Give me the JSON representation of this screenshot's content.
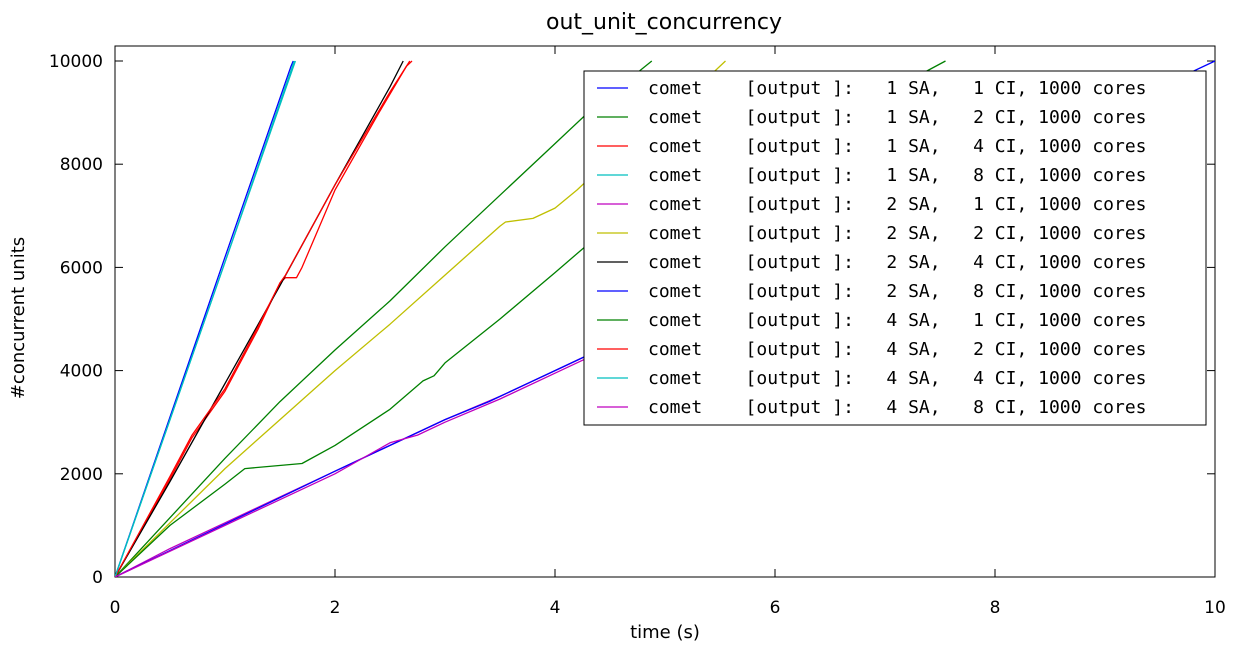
{
  "chart_data": {
    "type": "line",
    "title": "out_unit_concurrency",
    "xlabel": "time (s)",
    "ylabel": "#concurrent units",
    "xlim": [
      0,
      10
    ],
    "ylim": [
      0,
      10000
    ],
    "xticks": [
      "0",
      "2",
      "4",
      "6",
      "8",
      "10"
    ],
    "yticks": [
      "0",
      "2000",
      "4000",
      "6000",
      "8000",
      "10000"
    ],
    "grid": false,
    "legend_position": "upper right",
    "series": [
      {
        "name": "comet    [output ]:   1 SA,   1 CI, 1000 cores",
        "color": "#0000ff",
        "x": [
          0,
          0.5,
          1.0,
          1.6,
          1.62
        ],
        "y": [
          0,
          3100,
          6200,
          9900,
          10000
        ]
      },
      {
        "name": "comet    [output ]:   1 SA,   2 CI, 1000 cores",
        "color": "#008000",
        "x": [
          0,
          0.5,
          1.0,
          1.5,
          2.0,
          2.5,
          3.0,
          3.5,
          4.0,
          4.3,
          4.88
        ],
        "y": [
          0,
          1150,
          2300,
          3400,
          4400,
          5350,
          6400,
          7400,
          8400,
          9000,
          10000
        ]
      },
      {
        "name": "comet    [output ]:   1 SA,   4 CI, 1000 cores",
        "color": "#ff0000",
        "x": [
          0,
          0.5,
          0.7,
          1.0,
          1.3,
          1.5,
          1.55,
          1.6,
          1.65,
          1.7,
          2.0,
          2.4,
          2.65,
          2.7
        ],
        "y": [
          0,
          1900,
          2700,
          3600,
          4800,
          5700,
          5800,
          5800,
          5800,
          6000,
          7500,
          9000,
          9900,
          10000
        ]
      },
      {
        "name": "comet    [output ]:   1 SA,   8 CI, 1000 cores",
        "color": "#00bfbf",
        "x": [
          0,
          0.5,
          1.0,
          1.5,
          1.64
        ],
        "y": [
          0,
          3050,
          6100,
          9150,
          10000
        ]
      },
      {
        "name": "comet    [output ]:   2 SA,   1 CI, 1000 cores",
        "color": "#bf00bf",
        "x": [
          0,
          0.5,
          1.0,
          1.5,
          2.0,
          2.5,
          3.0,
          3.5,
          4.0,
          4.3
        ],
        "y": [
          0,
          550,
          1050,
          1550,
          2050,
          2550,
          3050,
          3500,
          4000,
          4300
        ]
      },
      {
        "name": "comet    [output ]:   2 SA,   2 CI, 1000 cores",
        "color": "#bfbf00",
        "x": [
          0,
          0.5,
          1.0,
          1.5,
          2.0,
          2.5,
          3.0,
          3.5,
          3.55,
          3.8,
          4.0,
          4.2,
          4.3,
          4.7,
          5.0,
          5.3,
          5.55
        ],
        "y": [
          0,
          1050,
          2100,
          3050,
          4000,
          4900,
          5850,
          6800,
          6880,
          6950,
          7150,
          7500,
          7700,
          8300,
          8950,
          9500,
          10000
        ]
      },
      {
        "name": "comet    [output ]:   2 SA,   4 CI, 1000 cores",
        "color": "#000000",
        "x": [
          0,
          0.5,
          1.0,
          1.5,
          2.0,
          2.5,
          2.62
        ],
        "y": [
          0,
          1850,
          3750,
          5650,
          7600,
          9500,
          10000
        ]
      },
      {
        "name": "comet    [output ]:   2 SA,   8 CI, 1000 cores",
        "color": "#0000ff",
        "x": [
          0,
          2.0,
          2.5,
          2.7,
          3.0,
          3.4,
          3.5,
          4.0,
          4.3,
          6.0,
          8.0,
          9.0,
          9.5,
          10.0
        ],
        "y": [
          0,
          2050,
          2550,
          2750,
          3050,
          3400,
          3500,
          4000,
          4300,
          5950,
          7950,
          8950,
          9500,
          10000
        ]
      },
      {
        "name": "comet    [output ]:   4 SA,   1 CI, 1000 cores",
        "color": "#008000",
        "x": [
          0,
          0.5,
          1.0,
          1.18,
          1.7,
          2.0,
          2.5,
          2.8,
          2.9,
          3.0,
          3.5,
          4.0,
          4.3,
          5.5,
          6.5,
          7.55
        ],
        "y": [
          0,
          1000,
          1800,
          2100,
          2200,
          2550,
          3250,
          3800,
          3900,
          4150,
          5000,
          5900,
          6450,
          7700,
          8800,
          10000
        ]
      },
      {
        "name": "comet    [output ]:   4 SA,   2 CI, 1000 cores",
        "color": "#ff0000",
        "x": [
          0,
          0.5,
          0.7,
          1.0,
          1.3,
          1.5,
          1.55,
          2.0,
          2.5,
          2.68
        ],
        "y": [
          0,
          1950,
          2750,
          3650,
          4850,
          5700,
          5850,
          7600,
          9400,
          10000
        ]
      },
      {
        "name": "comet    [output ]:   4 SA,   4 CI, 1000 cores",
        "color": "#00bfbf",
        "x": [
          0,
          0.5,
          1.0,
          1.5,
          1.63
        ],
        "y": [
          0,
          3050,
          6100,
          9200,
          10000
        ]
      },
      {
        "name": "comet    [output ]:   4 SA,   8 CI, 1000 cores",
        "color": "#bf00bf",
        "x": [
          0,
          1.0,
          2.0,
          2.5,
          2.75,
          3.0,
          3.5,
          4.0,
          4.3,
          6.0,
          8.0,
          9.0,
          9.5,
          9.92
        ],
        "y": [
          0,
          1000,
          2000,
          2600,
          2750,
          3000,
          3450,
          3950,
          4250,
          5900,
          7900,
          8900,
          9400,
          9800
        ]
      }
    ]
  }
}
